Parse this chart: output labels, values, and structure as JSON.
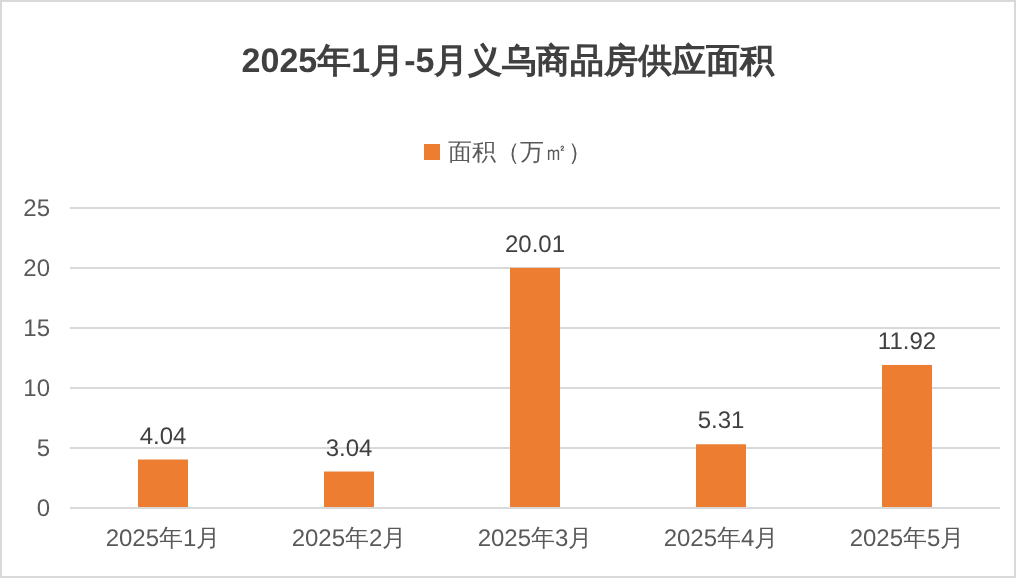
{
  "chart_data": {
    "type": "bar",
    "title": "2025年1月-5月义乌商品房供应面积",
    "categories": [
      "2025年1月",
      "2025年2月",
      "2025年3月",
      "2025年4月",
      "2025年5月"
    ],
    "series": [
      {
        "name": "面积（万㎡）",
        "color": "#ed7d31",
        "values": [
          4.04,
          3.04,
          20.01,
          5.31,
          11.92
        ]
      }
    ],
    "ylim": [
      0,
      25
    ],
    "yticks": [
      0,
      5,
      10,
      15,
      20,
      25
    ],
    "grid": "y",
    "legend": "top",
    "data_labels": true
  }
}
